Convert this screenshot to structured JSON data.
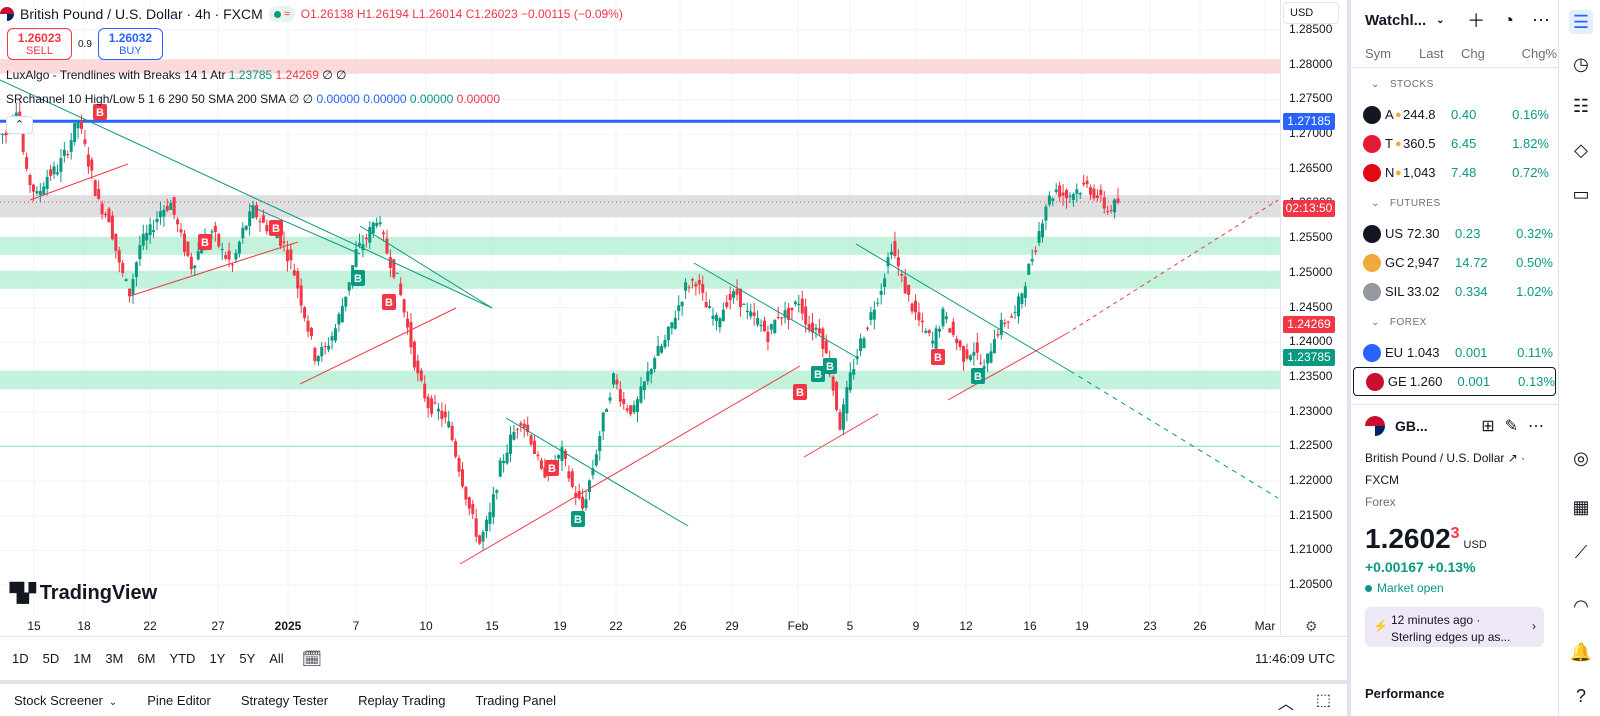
{
  "header": {
    "symbol_title": "British Pound / U.S. Dollar · 4h · FXCM",
    "ohlc": "O1.26138  H1.26194  L1.26014  C1.26023  −0.00115 (−0.09%)",
    "sell_price": "1.26023",
    "sell_label": "SELL",
    "spread": "0.9",
    "buy_price": "1.26032",
    "buy_label": "BUY",
    "indicator1": "LuxAlgo - Trendlines with Breaks 14 1 Atr",
    "indicator1_v1": "1.23785",
    "indicator1_v2": "1.24269",
    "indicator1_tail": "∅ ∅",
    "indicator2": "SRchannel 10 High/Low 5 1 6 290 50 SMA 200 SMA",
    "indicator2_tail": "∅ ∅",
    "indicator2_v1": "0.00000",
    "indicator2_v2": "0.00000",
    "indicator2_v3": "0.00000",
    "indicator2_v4": "0.00000",
    "currency": "USD",
    "logo_text": "TradingView"
  },
  "price_scale": {
    "labels": [
      "1.28500",
      "1.28000",
      "1.27500",
      "1.27000",
      "1.26500",
      "1.26000",
      "1.25500",
      "1.25000",
      "1.24500",
      "1.24000",
      "1.23500",
      "1.23000",
      "1.22500",
      "1.22000",
      "1.21500",
      "1.21000",
      "1.20500"
    ],
    "tag_blue": "1.27185",
    "tag_countdown": "02:13:50",
    "tag_red": "1.24269",
    "tag_green": "1.23785"
  },
  "time_axis": {
    "labels": [
      "15",
      "18",
      "22",
      "27",
      "2025",
      "7",
      "10",
      "15",
      "19",
      "22",
      "26",
      "29",
      "Feb",
      "5",
      "9",
      "12",
      "16",
      "19",
      "23",
      "26",
      "Mar"
    ]
  },
  "range_bar": {
    "ranges": [
      "1D",
      "5D",
      "1M",
      "3M",
      "6M",
      "YTD",
      "1Y",
      "5Y",
      "All"
    ],
    "clock": "11:46:09 UTC"
  },
  "bottom_bar": {
    "tabs": [
      "Stock Screener",
      "Pine Editor",
      "Strategy Tester",
      "Replay Trading",
      "Trading Panel"
    ]
  },
  "watchlist": {
    "title": "Watchl...",
    "columns": [
      "Sym",
      "Last",
      "Chg",
      "Chg%"
    ],
    "sections": [
      {
        "name": "STOCKS",
        "rows": [
          {
            "sym": "A",
            "icon_color": "#131722",
            "last": "244.8",
            "chg": "0.40",
            "pct": "0.16%"
          },
          {
            "sym": "T",
            "icon_color": "#e31937",
            "last": "360.5",
            "chg": "6.45",
            "pct": "1.82%"
          },
          {
            "sym": "N",
            "icon_color": "#e50914",
            "last": "1,043",
            "chg": "7.48",
            "pct": "0.72%"
          }
        ]
      },
      {
        "name": "FUTURES",
        "rows": [
          {
            "sym": "US",
            "icon_color": "#131722",
            "last": "72.30",
            "chg": "0.23",
            "pct": "0.32%"
          },
          {
            "sym": "GC",
            "icon_color": "#f2a93b",
            "last": "2,947",
            "chg": "14.72",
            "pct": "0.50%"
          },
          {
            "sym": "SIL",
            "icon_color": "#9598a1",
            "last": "33.02",
            "chg": "0.334",
            "pct": "1.02%"
          }
        ]
      },
      {
        "name": "FOREX",
        "rows": [
          {
            "sym": "EU",
            "icon_color": "#2962ff",
            "last": "1.043",
            "chg": "0.001",
            "pct": "0.11%"
          },
          {
            "sym": "GE",
            "icon_color": "#c8102e",
            "last": "1.260",
            "chg": "0.001",
            "pct": "0.13%"
          }
        ]
      }
    ]
  },
  "detail": {
    "short": "GB...",
    "name": "British Pound / U.S. Dollar",
    "exchange": "FXCM",
    "type": "Forex",
    "price_main": "1.2602",
    "price_sup": "3",
    "price_cur": "USD",
    "change": "+0.00167  +0.13%",
    "market": "Market open",
    "news_time": "12 minutes ago ·",
    "news_headline": "Sterling edges up as...",
    "performance": "Performance"
  },
  "colors": {
    "up": "#089981",
    "down": "#f23645",
    "blue_line": "#2962ff",
    "zone_green": "#b9f1d6",
    "zone_red": "#fbd2d4"
  },
  "chart_data": {
    "type": "candlestick",
    "title": "British Pound / U.S. Dollar · 4h · FXCM",
    "ylim": [
      1.2025,
      1.2875
    ],
    "x_ticks": [
      "15",
      "18",
      "22",
      "27",
      "2025",
      "7",
      "10",
      "15",
      "19",
      "22",
      "26",
      "29",
      "Feb",
      "5",
      "9",
      "12",
      "16",
      "19",
      "23",
      "26",
      "Mar"
    ],
    "price_path": [
      [
        1.27,
        1.274,
        1.264,
        1.261,
        1.264,
        1.265,
        1.268,
        1.272,
        1.266
      ],
      [
        1.26,
        1.258,
        1.251,
        1.247,
        1.254,
        1.256,
        1.259,
        1.26,
        1.255,
        1.251
      ],
      [
        1.254,
        1.256,
        1.253,
        1.251,
        1.256,
        1.259,
        1.257,
        1.256,
        1.254,
        1.25
      ],
      [
        1.244,
        1.238,
        1.239,
        1.242,
        1.247,
        1.253,
        1.255,
        1.258,
        1.253,
        1.249
      ],
      [
        1.242,
        1.235,
        1.231,
        1.23,
        1.228,
        1.222,
        1.216,
        1.211,
        1.215,
        1.222
      ],
      [
        1.226,
        1.229,
        1.226,
        1.221,
        1.222,
        1.224,
        1.219,
        1.216,
        1.222,
        1.229
      ],
      [
        1.235,
        1.231,
        1.23,
        1.234,
        1.238,
        1.24,
        1.244,
        1.248,
        1.249,
        1.245
      ],
      [
        1.243,
        1.246,
        1.247,
        1.244,
        1.243,
        1.241,
        1.244,
        1.244,
        1.246,
        1.242
      ],
      [
        1.242,
        1.236,
        1.228,
        1.235,
        1.24,
        1.244,
        1.248,
        1.254,
        1.249,
        1.245
      ],
      [
        1.242,
        1.24,
        1.244,
        1.241,
        1.238,
        1.239,
        1.236,
        1.241,
        1.243,
        1.244
      ],
      [
        1.249,
        1.254,
        1.26,
        1.262,
        1.261,
        1.262,
        1.2625,
        1.261,
        1.259,
        1.2602
      ]
    ],
    "zones": [
      {
        "kind": "resistance",
        "from": 1.2787,
        "to": 1.2808
      },
      {
        "kind": "current",
        "from": 1.258,
        "to": 1.2612
      },
      {
        "kind": "support",
        "from": 1.2526,
        "to": 1.2552
      },
      {
        "kind": "support",
        "from": 1.2477,
        "to": 1.2503
      },
      {
        "kind": "support",
        "from": 1.2332,
        "to": 1.2359
      }
    ],
    "horizontal_lines": [
      {
        "value": 1.27185,
        "label": "1.27185"
      },
      {
        "value": 1.225,
        "label": ""
      }
    ]
  }
}
